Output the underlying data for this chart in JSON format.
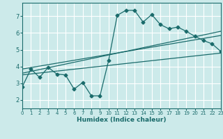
{
  "xlabel": "Humidex (Indice chaleur)",
  "xlim": [
    0,
    23
  ],
  "ylim": [
    1.5,
    7.8
  ],
  "yticks": [
    2,
    3,
    4,
    5,
    6,
    7
  ],
  "xticks": [
    0,
    1,
    2,
    3,
    4,
    5,
    6,
    7,
    8,
    9,
    10,
    11,
    12,
    13,
    14,
    15,
    16,
    17,
    18,
    19,
    20,
    21,
    22,
    23
  ],
  "bg_color": "#cceaea",
  "line_color": "#1a6b6b",
  "grid_color": "#ffffff",
  "line1_x": [
    0,
    1,
    2,
    3,
    4,
    5,
    6,
    7,
    8,
    9,
    10,
    11,
    12,
    13,
    14,
    15,
    16,
    17,
    18,
    19,
    20,
    21,
    22,
    23
  ],
  "line1_y": [
    2.8,
    3.85,
    3.35,
    3.95,
    3.55,
    3.5,
    2.65,
    3.05,
    2.25,
    2.25,
    4.35,
    7.05,
    7.35,
    7.35,
    6.65,
    7.1,
    6.5,
    6.25,
    6.35,
    6.1,
    5.8,
    5.55,
    5.35,
    4.9
  ],
  "line2_x": [
    0,
    23
  ],
  "line2_y": [
    3.5,
    4.8
  ],
  "line3_x": [
    0,
    23
  ],
  "line3_y": [
    3.6,
    6.1
  ],
  "line4_x": [
    0,
    23
  ],
  "line4_y": [
    3.85,
    5.85
  ]
}
